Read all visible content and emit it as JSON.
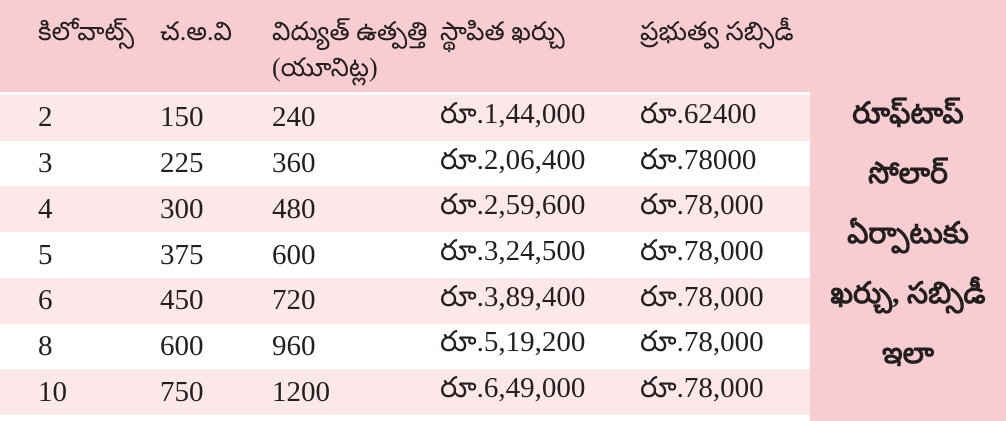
{
  "colors": {
    "header_band": "#f8cdd1",
    "sidebar_band": "#f8cdd1",
    "row_alt": "#fce8e9",
    "row_plain": "#ffffff",
    "text": "#231f20"
  },
  "table": {
    "columns": [
      {
        "id": "kilowatts",
        "label": "కిలోవాట్స్",
        "sublabel": ""
      },
      {
        "id": "area",
        "label": "చ.అ.వి",
        "sublabel": ""
      },
      {
        "id": "generation-units",
        "label": "విద్యుత్ ఉత్పత్తి",
        "sublabel": "(యూనిట్ల)"
      },
      {
        "id": "installed-cost",
        "label": "స్థాపిత ఖర్చు",
        "sublabel": ""
      },
      {
        "id": "govt-subsidy",
        "label": "ప్రభుత్వ సబ్సిడీ",
        "sublabel": ""
      }
    ],
    "rows": [
      [
        "2",
        "150",
        "240",
        "రూ.1,44,000",
        "రూ.62400"
      ],
      [
        "3",
        "225",
        "360",
        "రూ.2,06,400",
        "రూ.78000"
      ],
      [
        "4",
        "300",
        "480",
        "రూ.2,59,600",
        "రూ.78,000"
      ],
      [
        "5",
        "375",
        "600",
        "రూ.3,24,500",
        "రూ.78,000"
      ],
      [
        "6",
        "450",
        "720",
        "రూ.3,89,400",
        "రూ.78,000"
      ],
      [
        "8",
        "600",
        "960",
        "రూ.5,19,200",
        "రూ.78,000"
      ],
      [
        "10",
        "750",
        "1200",
        "రూ.6,49,000",
        "రూ.78,000"
      ]
    ]
  },
  "sidebar": {
    "lines": [
      "రూఫ్‌టాప్",
      "సోలార్",
      "ఏర్పాటుకు",
      "ఖర్చు, సబ్సిడీ",
      "ఇలా"
    ]
  },
  "chart_data": {
    "type": "table",
    "title": "రూఫ్‌టాప్ సోలార్ ఏర్పాటుకు ఖర్చు, సబ్సిడీ ఇలా",
    "columns": [
      "కిలోవాట్స్",
      "చ.అ.వి",
      "విద్యుత్ ఉత్పత్తి (యూనిట్ల)",
      "స్థాపిత ఖర్చు",
      "ప్రభుత్వ సబ్సిడీ"
    ],
    "rows": [
      {
        "kilowatts": 2,
        "area_sqft": 150,
        "units": 240,
        "installed_cost": "రూ.1,44,000",
        "subsidy": "రూ.62400"
      },
      {
        "kilowatts": 3,
        "area_sqft": 225,
        "units": 360,
        "installed_cost": "రూ.2,06,400",
        "subsidy": "రూ.78000"
      },
      {
        "kilowatts": 4,
        "area_sqft": 300,
        "units": 480,
        "installed_cost": "రూ.2,59,600",
        "subsidy": "రూ.78,000"
      },
      {
        "kilowatts": 5,
        "area_sqft": 375,
        "units": 600,
        "installed_cost": "రూ.3,24,500",
        "subsidy": "రూ.78,000"
      },
      {
        "kilowatts": 6,
        "area_sqft": 450,
        "units": 720,
        "installed_cost": "రూ.3,89,400",
        "subsidy": "రూ.78,000"
      },
      {
        "kilowatts": 8,
        "area_sqft": 600,
        "units": 960,
        "installed_cost": "రూ.5,19,200",
        "subsidy": "రూ.78,000"
      },
      {
        "kilowatts": 10,
        "area_sqft": 750,
        "units": 1200,
        "installed_cost": "రూ.6,49,000",
        "subsidy": "రూ.78,000"
      }
    ],
    "layout_hints": {
      "header_background": "#f8cdd1",
      "alternating_row_background": "#fce8e9",
      "sidebar_caption_position": "right"
    }
  }
}
